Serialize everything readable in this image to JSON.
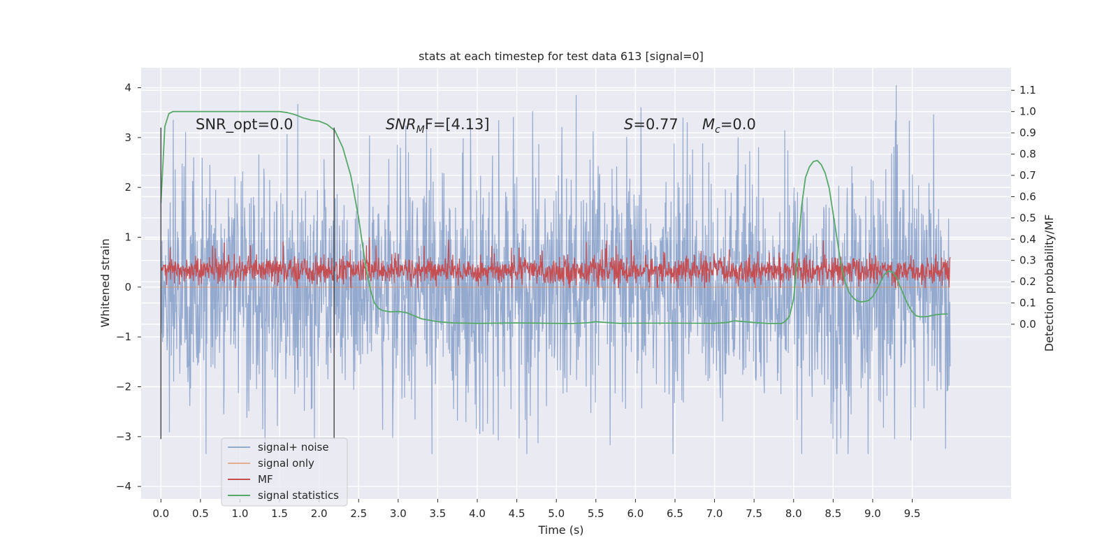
{
  "chart_data": {
    "type": "line",
    "title": "stats at each timestep for test data 613 [signal=0]",
    "xlabel": "Time (s)",
    "ylabel": "Whitened strain",
    "ylabel_right": "Detection probability/MF",
    "xlim": [
      -0.25,
      10.75
    ],
    "ylim": [
      -4.25,
      4.4
    ],
    "ylim_right": [
      -0.8214,
      1.2059
    ],
    "x_ticks": [
      "0.0",
      "0.5",
      "1.0",
      "1.5",
      "2.0",
      "2.5",
      "3.0",
      "3.5",
      "4.0",
      "4.5",
      "5.0",
      "5.5",
      "6.0",
      "6.5",
      "7.0",
      "7.5",
      "8.0",
      "8.5",
      "9.0",
      "9.5"
    ],
    "y_ticks": [
      "4",
      "3",
      "2",
      "1",
      "0",
      "−1",
      "−2",
      "−3",
      "−4"
    ],
    "y_ticks_right": [
      "1.1",
      "1.0",
      "0.9",
      "0.8",
      "0.7",
      "0.6",
      "0.5",
      "0.4",
      "0.3",
      "0.2",
      "0.1",
      "0.0"
    ],
    "annotations": {
      "snr_opt": "SNR_opt=0.0",
      "snr_mf_prefix": "SNR",
      "snr_mf_sub": "M",
      "snr_mf_suffix": "F=[4.13]",
      "s_prefix": "S",
      "s_suffix": "=0.77",
      "mc_prefix": "M",
      "mc_sub": "c",
      "mc_suffix": "=0.0"
    },
    "vlines": [
      {
        "x": 0.0,
        "ymin": -3.05,
        "ymax": 3.2
      },
      {
        "x": 2.19,
        "ymin": -3.05,
        "ymax": 3.2
      }
    ],
    "legend": {
      "placement": "lower-left",
      "entries": [
        "signal+ noise",
        "signal only",
        "MF",
        "signal statistics"
      ]
    },
    "series": [
      {
        "name": "signal+ noise",
        "color": "#4c72b0",
        "axis": "left",
        "x_range": [
          0.0,
          9.98
        ],
        "samples": 2048,
        "envelope_upper": 2.6,
        "envelope_lower": -2.6,
        "approx_max": 4.05,
        "approx_min": -3.35
      },
      {
        "name": "signal only",
        "color": "#dd8452",
        "axis": "left",
        "x": [
          0.0,
          9.98
        ],
        "y": [
          0.0,
          0.0
        ]
      },
      {
        "name": "MF",
        "color": "#c44e52",
        "axis": "left",
        "x_range": [
          0.0,
          9.98
        ],
        "samples": 2048,
        "baseline_low": 0.1,
        "baseline_high": 0.65,
        "approx_max": 1.0,
        "approx_min": -0.02
      },
      {
        "name": "signal statistics",
        "color": "#55a868",
        "axis": "right",
        "x": [
          0.0,
          0.05,
          0.1,
          0.15,
          0.2,
          0.3,
          0.5,
          0.8,
          1.0,
          1.2,
          1.5,
          1.6,
          1.7,
          1.8,
          1.9,
          2.0,
          2.1,
          2.2,
          2.3,
          2.4,
          2.45,
          2.5,
          2.55,
          2.6,
          2.65,
          2.7,
          2.75,
          2.8,
          2.9,
          3.0,
          3.1,
          3.2,
          3.3,
          3.5,
          3.7,
          4.0,
          4.5,
          5.0,
          5.2,
          5.4,
          5.5,
          5.6,
          5.8,
          6.0,
          6.5,
          7.0,
          7.15,
          7.25,
          7.35,
          7.5,
          7.7,
          7.85,
          7.9,
          7.95,
          8.0,
          8.05,
          8.1,
          8.15,
          8.2,
          8.25,
          8.3,
          8.35,
          8.4,
          8.45,
          8.5,
          8.55,
          8.6,
          8.65,
          8.7,
          8.75,
          8.8,
          8.85,
          8.9,
          8.95,
          9.0,
          9.05,
          9.1,
          9.15,
          9.2,
          9.25,
          9.3,
          9.35,
          9.4,
          9.45,
          9.5,
          9.55,
          9.6,
          9.65,
          9.7,
          9.8,
          9.9,
          9.95
        ],
        "y": [
          0.57,
          0.93,
          0.99,
          1.0,
          1.0,
          1.0,
          1.0,
          1.0,
          1.0,
          1.0,
          1.0,
          0.995,
          0.985,
          0.97,
          0.96,
          0.955,
          0.94,
          0.91,
          0.83,
          0.7,
          0.6,
          0.5,
          0.37,
          0.25,
          0.16,
          0.1,
          0.075,
          0.065,
          0.058,
          0.06,
          0.055,
          0.04,
          0.025,
          0.012,
          0.006,
          0.004,
          0.006,
          0.004,
          0.003,
          0.007,
          0.012,
          0.009,
          0.004,
          0.005,
          0.005,
          0.004,
          0.008,
          0.016,
          0.013,
          0.008,
          0.003,
          0.004,
          0.015,
          0.04,
          0.12,
          0.32,
          0.55,
          0.69,
          0.74,
          0.765,
          0.77,
          0.75,
          0.71,
          0.64,
          0.52,
          0.4,
          0.28,
          0.2,
          0.15,
          0.125,
          0.11,
          0.105,
          0.107,
          0.112,
          0.13,
          0.16,
          0.2,
          0.235,
          0.25,
          0.245,
          0.22,
          0.175,
          0.13,
          0.09,
          0.058,
          0.04,
          0.035,
          0.035,
          0.037,
          0.045,
          0.048,
          0.048
        ]
      }
    ]
  }
}
